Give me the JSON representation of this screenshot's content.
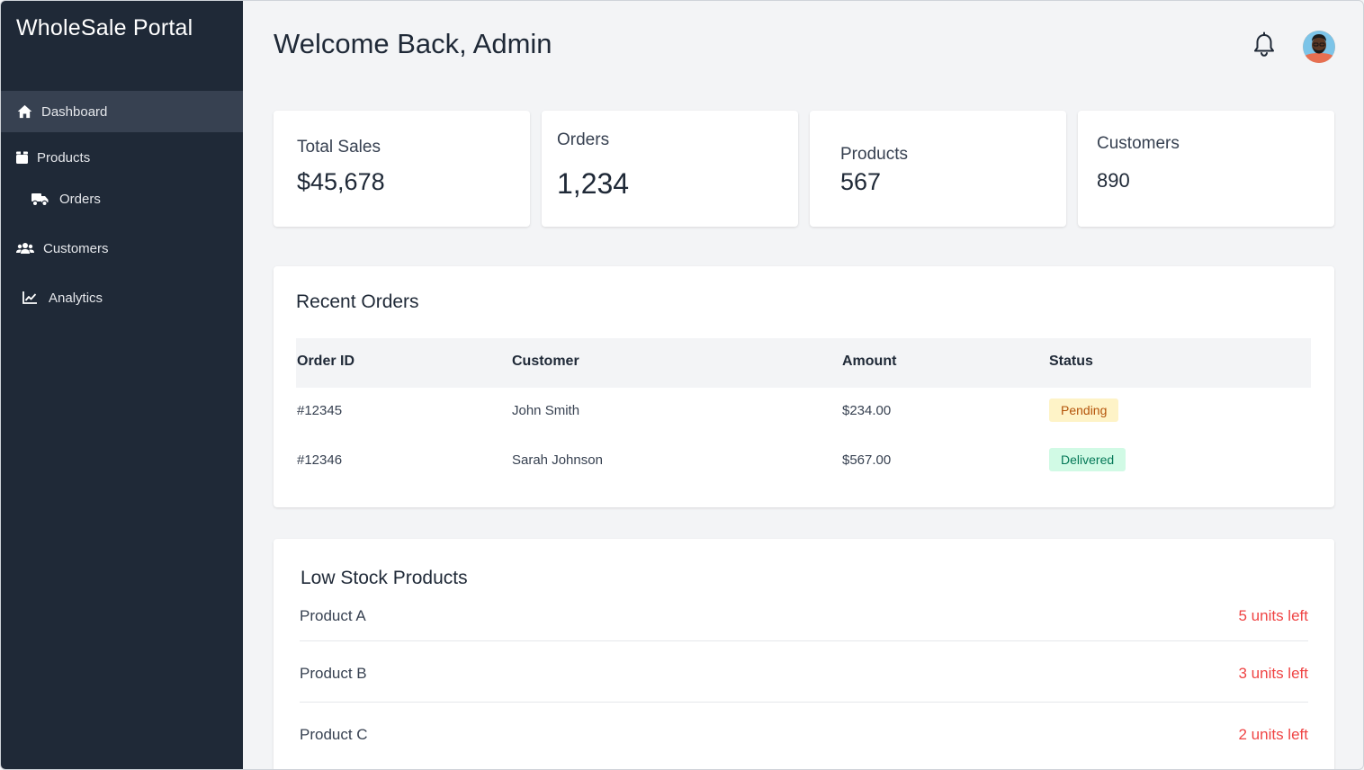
{
  "sidebar": {
    "brand": "WholeSale Portal",
    "items": [
      {
        "label": "Dashboard",
        "icon": "home-icon",
        "active": true
      },
      {
        "label": "Products",
        "icon": "box-icon"
      },
      {
        "label": "Orders",
        "icon": "truck-icon"
      },
      {
        "label": "Customers",
        "icon": "users-icon"
      },
      {
        "label": "Analytics",
        "icon": "chart-line-icon"
      }
    ]
  },
  "header": {
    "title": "Welcome Back, Admin",
    "notification_icon": "bell-icon",
    "avatar_icon": "avatar"
  },
  "stats": [
    {
      "label": "Total Sales",
      "value": "$45,678"
    },
    {
      "label": "Orders",
      "value": "1,234"
    },
    {
      "label": "Products",
      "value": "567"
    },
    {
      "label": "Customers",
      "value": "890"
    }
  ],
  "recent_orders": {
    "title": "Recent Orders",
    "columns": [
      "Order ID",
      "Customer",
      "Amount",
      "Status"
    ],
    "rows": [
      {
        "id": "#12345",
        "customer": "John Smith",
        "amount": "$234.00",
        "status": "Pending"
      },
      {
        "id": "#12346",
        "customer": "Sarah Johnson",
        "amount": "$567.00",
        "status": "Delivered"
      }
    ]
  },
  "low_stock": {
    "title": "Low Stock Products",
    "items": [
      {
        "name": "Product A",
        "qty": "5 units left"
      },
      {
        "name": "Product B",
        "qty": "3 units left"
      },
      {
        "name": "Product C",
        "qty": "2 units left"
      }
    ]
  },
  "colors": {
    "sidebar_bg": "#1f2937",
    "sidebar_active": "#374151",
    "pending_bg": "#fef3c7",
    "pending_text": "#b45309",
    "delivered_bg": "#d1fae5",
    "delivered_text": "#047857",
    "low_stock_text": "#ef4444"
  }
}
